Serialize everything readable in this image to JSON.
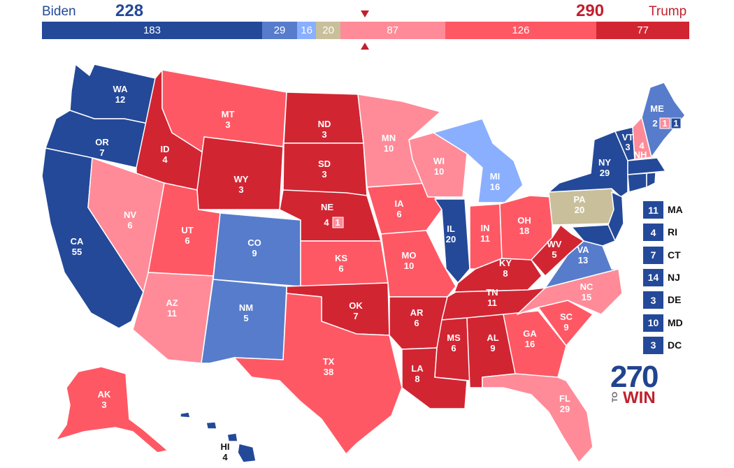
{
  "header": {
    "left_name": "Biden",
    "left_total": "228",
    "right_name": "Trump",
    "right_total": "290"
  },
  "colors": {
    "safe_dem": "#244999",
    "likely_dem": "#577ccc",
    "lean_dem": "#8aafff",
    "tossup": "#c9c09b",
    "lean_rep": "#ff8b98",
    "likely_rep": "#ff5865",
    "safe_rep": "#d22532"
  },
  "bar": [
    {
      "label": "183",
      "value": 183,
      "color": "#244999"
    },
    {
      "label": "29",
      "value": 29,
      "color": "#577ccc"
    },
    {
      "label": "16",
      "value": 16,
      "color": "#8aafff"
    },
    {
      "label": "20",
      "value": 20,
      "color": "#c9c09b"
    },
    {
      "label": "87",
      "value": 87,
      "color": "#ff8b98"
    },
    {
      "label": "126",
      "value": 126,
      "color": "#ff5865"
    },
    {
      "label": "77",
      "value": 77,
      "color": "#d22532"
    }
  ],
  "states": {
    "WA": {
      "name": "WA",
      "ev": "12"
    },
    "OR": {
      "name": "OR",
      "ev": "7"
    },
    "CA": {
      "name": "CA",
      "ev": "55"
    },
    "ID": {
      "name": "ID",
      "ev": "4"
    },
    "NV": {
      "name": "NV",
      "ev": "6"
    },
    "MT": {
      "name": "MT",
      "ev": "3"
    },
    "WY": {
      "name": "WY",
      "ev": "3"
    },
    "UT": {
      "name": "UT",
      "ev": "6"
    },
    "AZ": {
      "name": "AZ",
      "ev": "11"
    },
    "CO": {
      "name": "CO",
      "ev": "9"
    },
    "NM": {
      "name": "NM",
      "ev": "5"
    },
    "ND": {
      "name": "ND",
      "ev": "3"
    },
    "SD": {
      "name": "SD",
      "ev": "3"
    },
    "NE": {
      "name": "NE",
      "ev": "4",
      "district": "1"
    },
    "KS": {
      "name": "KS",
      "ev": "6"
    },
    "OK": {
      "name": "OK",
      "ev": "7"
    },
    "TX": {
      "name": "TX",
      "ev": "38"
    },
    "MN": {
      "name": "MN",
      "ev": "10"
    },
    "IA": {
      "name": "IA",
      "ev": "6"
    },
    "MO": {
      "name": "MO",
      "ev": "10"
    },
    "AR": {
      "name": "AR",
      "ev": "6"
    },
    "LA": {
      "name": "LA",
      "ev": "8"
    },
    "WI": {
      "name": "WI",
      "ev": "10"
    },
    "IL": {
      "name": "IL",
      "ev": "20"
    },
    "MI": {
      "name": "MI",
      "ev": "16"
    },
    "IN": {
      "name": "IN",
      "ev": "11"
    },
    "OH": {
      "name": "OH",
      "ev": "18"
    },
    "KY": {
      "name": "KY",
      "ev": "8"
    },
    "TN": {
      "name": "TN",
      "ev": "11"
    },
    "MS": {
      "name": "MS",
      "ev": "6"
    },
    "AL": {
      "name": "AL",
      "ev": "9"
    },
    "GA": {
      "name": "GA",
      "ev": "16"
    },
    "FL": {
      "name": "FL",
      "ev": "29"
    },
    "SC": {
      "name": "SC",
      "ev": "9"
    },
    "NC": {
      "name": "NC",
      "ev": "15"
    },
    "VA": {
      "name": "VA",
      "ev": "13"
    },
    "WV": {
      "name": "WV",
      "ev": "5"
    },
    "PA": {
      "name": "PA",
      "ev": "20"
    },
    "NY": {
      "name": "NY",
      "ev": "29"
    },
    "VT": {
      "name": "VT",
      "ev": "3"
    },
    "NH": {
      "name": "NH",
      "ev": "4"
    },
    "ME": {
      "name": "ME",
      "ev": "2",
      "district_1": "1",
      "district_2": "1"
    },
    "AK": {
      "name": "AK",
      "ev": "3"
    },
    "HI": {
      "name": "HI",
      "ev": "4"
    }
  },
  "small_states": [
    {
      "abbr": "MA",
      "ev": "11",
      "color": "#244999"
    },
    {
      "abbr": "RI",
      "ev": "4",
      "color": "#244999"
    },
    {
      "abbr": "CT",
      "ev": "7",
      "color": "#244999"
    },
    {
      "abbr": "NJ",
      "ev": "14",
      "color": "#244999"
    },
    {
      "abbr": "DE",
      "ev": "3",
      "color": "#244999"
    },
    {
      "abbr": "MD",
      "ev": "10",
      "color": "#244999"
    },
    {
      "abbr": "DC",
      "ev": "3",
      "color": "#244999"
    }
  ],
  "logo": {
    "number": "270",
    "to": "TO",
    "win": "WIN"
  }
}
